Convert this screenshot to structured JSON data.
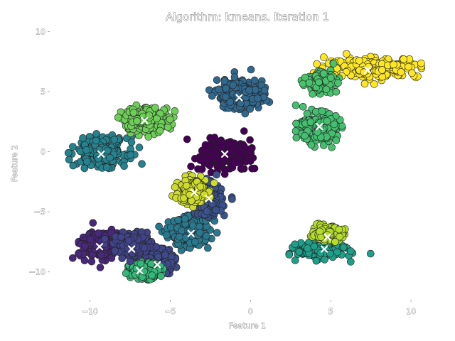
{
  "chart_data": {
    "type": "scatter",
    "title": "Algorithm: kmeans. Iteration 1",
    "xlabel": "Feature 1",
    "ylabel": "Feature 2",
    "xlim": [
      -12.5,
      11.5
    ],
    "ylim": [
      -12.5,
      10.5
    ],
    "xticks": [
      -10,
      -5,
      0,
      5,
      10
    ],
    "xtick_labels": [
      "−10",
      "−5",
      "0",
      "5",
      "10"
    ],
    "yticks": [
      -10,
      -5,
      0,
      5,
      10
    ],
    "ytick_labels": [
      "−10",
      "−5",
      "0",
      "5",
      "10"
    ],
    "grid": false,
    "legend": "none",
    "clusters": [
      {
        "color": "#440154",
        "center": [
          -1.6,
          -0.2
        ],
        "spread": [
          1.6,
          1.3
        ],
        "centroid": [
          -1.6,
          -0.2
        ]
      },
      {
        "color": "#482878",
        "center": [
          -9.2,
          -7.8
        ],
        "spread": [
          1.6,
          1.2
        ],
        "centroid": [
          -9.4,
          -7.9
        ]
      },
      {
        "color": "#3e4a89",
        "center": [
          -5.6,
          -9.2
        ],
        "spread": [
          0.9,
          1.1
        ],
        "centroid": [
          -5.8,
          -9.4
        ]
      },
      {
        "color": "#31688e",
        "center": [
          -0.7,
          4.7
        ],
        "spread": [
          1.6,
          1.3
        ],
        "centroid": [
          -0.7,
          4.5
        ]
      },
      {
        "color": "#26828e",
        "center": [
          -9.2,
          0.0
        ],
        "spread": [
          1.7,
          1.3
        ],
        "centroid": [
          -9.3,
          -0.2
        ]
      },
      {
        "color": "#1f9e89",
        "center": [
          4.4,
          -8.2
        ],
        "spread": [
          1.6,
          0.7
        ],
        "centroid": [
          4.6,
          -8.1
        ]
      },
      {
        "color": "#35b779",
        "center": [
          -6.6,
          -9.9
        ],
        "spread": [
          1.0,
          0.7
        ],
        "centroid": [
          -6.9,
          -9.9
        ]
      },
      {
        "color": "#6ece58",
        "center": [
          -6.5,
          2.7
        ],
        "spread": [
          1.6,
          1.1
        ],
        "centroid": [
          -6.6,
          2.6
        ]
      },
      {
        "color": "#b5de2b",
        "center": [
          4.8,
          -6.8
        ],
        "spread": [
          1.0,
          0.6
        ],
        "centroid": [
          4.8,
          -7.1
        ]
      },
      {
        "color": "#fde725",
        "center": [
          7.6,
          7.0
        ],
        "spread": [
          3.2,
          0.9
        ],
        "centroid": [
          7.3,
          6.8
        ]
      },
      {
        "color": "#2a788e",
        "center": [
          -3.8,
          -6.7
        ],
        "spread": [
          1.4,
          1.2
        ],
        "centroid": [
          -3.7,
          -6.8
        ]
      },
      {
        "color": "#3b528b",
        "center": [
          -2.6,
          -4.0
        ],
        "spread": [
          0.9,
          1.4
        ],
        "centroid": [
          -2.6,
          -3.9
        ]
      },
      {
        "color": "#404387",
        "center": [
          -7.3,
          -7.8
        ],
        "spread": [
          1.3,
          1.0
        ],
        "centroid": [
          -7.4,
          -8.1
        ]
      },
      {
        "color": "#cddb2a",
        "center": [
          -3.6,
          -3.2
        ],
        "spread": [
          0.9,
          1.1
        ],
        "centroid": [
          -3.5,
          -3.4
        ]
      },
      {
        "color": "#44bf70",
        "center": [
          4.2,
          2.0
        ],
        "spread": [
          1.3,
          1.3
        ],
        "centroid": [
          4.3,
          2.1
        ]
      },
      {
        "color": "#4ac16d",
        "center": [
          4.4,
          5.8
        ],
        "spread": [
          0.9,
          0.8
        ],
        "centroid": null
      }
    ]
  }
}
